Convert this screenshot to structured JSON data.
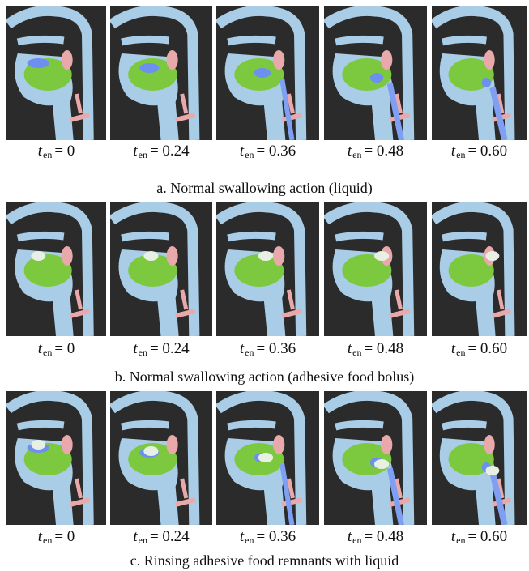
{
  "variable": {
    "symbol": "t",
    "subscript": "en"
  },
  "rows": [
    {
      "labels": [
        "= 0",
        "= 0.24",
        "= 0.36",
        "= 0.48",
        "= 0.60"
      ],
      "caption": "a. Normal swallowing action (liquid)"
    },
    {
      "labels": [
        "= 0",
        "= 0.24",
        "= 0.36",
        "= 0.48",
        "= 0.60"
      ],
      "caption": "b. Normal swallowing action (adhesive food bolus)"
    },
    {
      "labels": [
        "= 0",
        "= 0.24",
        "= 0.36",
        "= 0.48",
        "= 0.60"
      ],
      "caption": "c. Rinsing adhesive food remnants with liquid"
    }
  ]
}
